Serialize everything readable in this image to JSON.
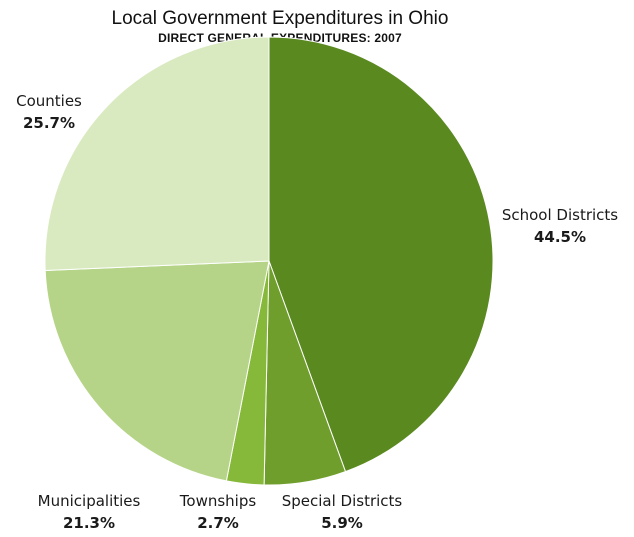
{
  "chart_data": {
    "type": "pie",
    "title": "Local Government Expenditures in Ohio",
    "subtitle": "DIRECT GENERAL EXPENDITURES: 2007",
    "slices": [
      {
        "label": "School Districts",
        "value": 44.5,
        "value_label": "44.5%",
        "color": "#5a8a1f"
      },
      {
        "label": "Special Districts",
        "value": 5.9,
        "value_label": "5.9%",
        "color": "#6f9e2c"
      },
      {
        "label": "Townships",
        "value": 2.7,
        "value_label": "2.7%",
        "color": "#86b83a"
      },
      {
        "label": "Municipalities",
        "value": 21.3,
        "value_label": "21.3%",
        "color": "#b5d487"
      },
      {
        "label": "Counties",
        "value": 25.7,
        "value_label": "25.7%",
        "color": "#d9eac0"
      }
    ],
    "start_angle": "12 o'clock, clockwise"
  }
}
